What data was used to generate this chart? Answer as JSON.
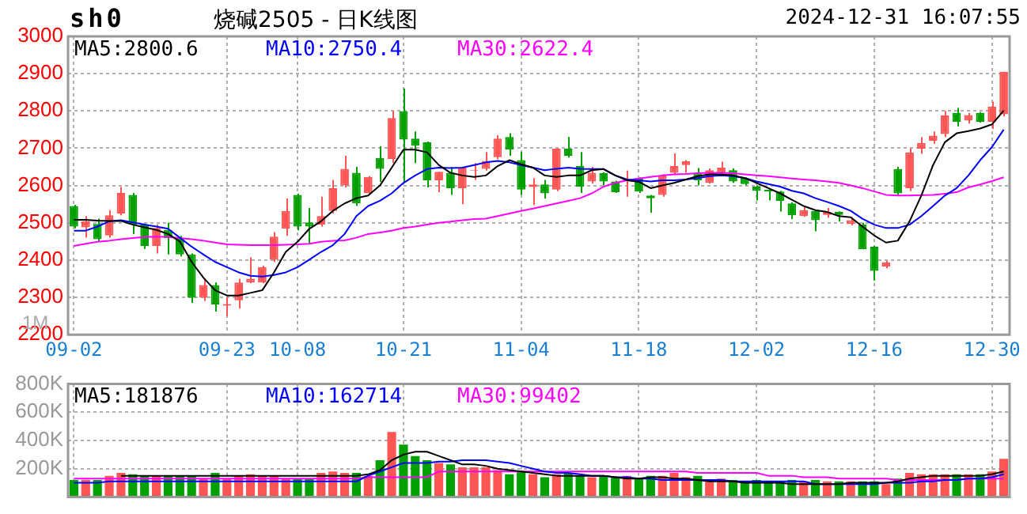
{
  "chart_data": [
    {
      "type": "candlestick",
      "title": "烧碱2505 - 日K线图",
      "subtitle": "2024-12-31 16:07:55",
      "annotations": [
        "sh0",
        "1M"
      ],
      "categories": [
        "09-02",
        null,
        null,
        null,
        null,
        null,
        null,
        null,
        null,
        null,
        null,
        null,
        null,
        "09-23",
        null,
        null,
        null,
        null,
        null,
        "10-08",
        null,
        null,
        null,
        null,
        null,
        null,
        null,
        null,
        "10-21",
        null,
        null,
        null,
        null,
        null,
        null,
        null,
        null,
        null,
        "11-04",
        null,
        null,
        null,
        null,
        null,
        null,
        null,
        null,
        null,
        "11-18",
        null,
        null,
        null,
        null,
        null,
        null,
        null,
        null,
        null,
        "12-02",
        null,
        null,
        null,
        null,
        null,
        null,
        null,
        null,
        null,
        "12-16",
        null,
        null,
        null,
        null,
        null,
        null,
        null,
        null,
        null,
        "12-30",
        null
      ],
      "ohlc": [
        [
          2545,
          2548,
          2485,
          2490
        ],
        [
          2488,
          2518,
          2460,
          2504
        ],
        [
          2497,
          2511,
          2449,
          2456
        ],
        [
          2466,
          2534,
          2460,
          2520
        ],
        [
          2525,
          2596,
          2520,
          2580
        ],
        [
          2575,
          2580,
          2470,
          2495
        ],
        [
          2495,
          2498,
          2430,
          2438
        ],
        [
          2438,
          2496,
          2418,
          2486
        ],
        [
          2481,
          2500,
          2415,
          2459
        ],
        [
          2459,
          2465,
          2410,
          2415
        ],
        [
          2415,
          2418,
          2285,
          2299
        ],
        [
          2299,
          2350,
          2290,
          2333
        ],
        [
          2333,
          2340,
          2262,
          2281
        ],
        [
          2278,
          2300,
          2250,
          2282
        ],
        [
          2292,
          2350,
          2270,
          2340
        ],
        [
          2340,
          2408,
          2338,
          2350
        ],
        [
          2340,
          2385,
          2338,
          2381
        ],
        [
          2401,
          2475,
          2395,
          2463
        ],
        [
          2484,
          2565,
          2465,
          2532
        ],
        [
          2575,
          2578,
          2480,
          2490
        ],
        [
          2501,
          2540,
          2445,
          2490
        ],
        [
          2495,
          2570,
          2490,
          2518
        ],
        [
          2532,
          2615,
          2525,
          2593
        ],
        [
          2600,
          2680,
          2595,
          2645
        ],
        [
          2634,
          2650,
          2545,
          2552
        ],
        [
          2579,
          2625,
          2575,
          2623
        ],
        [
          2674,
          2705,
          2610,
          2645
        ],
        [
          2671,
          2800,
          2660,
          2781
        ],
        [
          2799,
          2860,
          2610,
          2723
        ],
        [
          2726,
          2745,
          2660,
          2707
        ],
        [
          2716,
          2718,
          2595,
          2614
        ],
        [
          2614,
          2637,
          2582,
          2637
        ],
        [
          2634,
          2650,
          2575,
          2593
        ],
        [
          2593,
          2650,
          2550,
          2648
        ],
        [
          2640,
          2660,
          2615,
          2642
        ],
        [
          2645,
          2690,
          2640,
          2666
        ],
        [
          2676,
          2735,
          2670,
          2726
        ],
        [
          2730,
          2740,
          2680,
          2696
        ],
        [
          2668,
          2690,
          2575,
          2589
        ],
        [
          2596,
          2620,
          2547,
          2603
        ],
        [
          2603,
          2615,
          2565,
          2579
        ],
        [
          2589,
          2700,
          2585,
          2699
        ],
        [
          2699,
          2730,
          2675,
          2680
        ],
        [
          2652,
          2690,
          2580,
          2597
        ],
        [
          2611,
          2650,
          2605,
          2634
        ],
        [
          2633,
          2636,
          2600,
          2611
        ],
        [
          2611,
          2613,
          2580,
          2582
        ],
        [
          2612,
          2640,
          2570,
          2616
        ],
        [
          2620,
          2622,
          2580,
          2584
        ],
        [
          2573,
          2575,
          2527,
          2566
        ],
        [
          2575,
          2630,
          2570,
          2627
        ],
        [
          2634,
          2686,
          2628,
          2652
        ],
        [
          2655,
          2668,
          2634,
          2665
        ],
        [
          2634,
          2647,
          2600,
          2614
        ],
        [
          2607,
          2646,
          2605,
          2641
        ],
        [
          2634,
          2664,
          2630,
          2648
        ],
        [
          2641,
          2646,
          2607,
          2611
        ],
        [
          2620,
          2622,
          2600,
          2604
        ],
        [
          2597,
          2600,
          2560,
          2586
        ],
        [
          2589,
          2592,
          2560,
          2584
        ],
        [
          2584,
          2586,
          2530,
          2559
        ],
        [
          2552,
          2555,
          2510,
          2520
        ],
        [
          2518,
          2545,
          2516,
          2534
        ],
        [
          2532,
          2535,
          2477,
          2507
        ],
        [
          2521,
          2540,
          2514,
          2529
        ],
        [
          2529,
          2531,
          2503,
          2521
        ],
        [
          2497,
          2515,
          2493,
          2507
        ],
        [
          2495,
          2500,
          2429,
          2429
        ],
        [
          2436,
          2438,
          2345,
          2371
        ],
        [
          2383,
          2398,
          2378,
          2394
        ],
        [
          2644,
          2650,
          2575,
          2579
        ],
        [
          2593,
          2700,
          2585,
          2689
        ],
        [
          2699,
          2730,
          2685,
          2714
        ],
        [
          2720,
          2745,
          2712,
          2734
        ],
        [
          2738,
          2800,
          2730,
          2788
        ],
        [
          2795,
          2808,
          2759,
          2771
        ],
        [
          2774,
          2795,
          2766,
          2789
        ],
        [
          2795,
          2797,
          2769,
          2771
        ],
        [
          2771,
          2825,
          2752,
          2812
        ],
        [
          2791,
          2905,
          2785,
          2905
        ]
      ],
      "colors": [
        "#00a000",
        "#ff5555",
        "#00a000",
        "#ff5555",
        "#ff5555",
        "#00a000",
        "#00a000",
        "#ff5555",
        "#00a000",
        "#00a000",
        "#00a000",
        "#ff5555",
        "#00a000",
        "#ff5555",
        "#ff5555",
        "#ff5555",
        "#ff5555",
        "#ff5555",
        "#ff5555",
        "#00a000",
        "#00a000",
        "#ff5555",
        "#ff5555",
        "#ff5555",
        "#00a000",
        "#ff5555",
        "#00a000",
        "#ff5555",
        "#00a000",
        "#00a000",
        "#00a000",
        "#ff5555",
        "#00a000",
        "#ff5555",
        "#ff5555",
        "#ff5555",
        "#ff5555",
        "#00a000",
        "#00a000",
        "#ff5555",
        "#00a000",
        "#ff5555",
        "#00a000",
        "#00a000",
        "#ff5555",
        "#00a000",
        "#00a000",
        "#ff5555",
        "#00a000",
        "#00a000",
        "#ff5555",
        "#ff5555",
        "#ff5555",
        "#00a000",
        "#ff5555",
        "#ff5555",
        "#00a000",
        "#00a000",
        "#00a000",
        "#00a000",
        "#00a000",
        "#00a000",
        "#ff5555",
        "#00a000",
        "#ff5555",
        "#00a000",
        "#ff5555",
        "#00a000",
        "#00a000",
        "#ff5555",
        "#00a000",
        "#ff5555",
        "#ff5555",
        "#ff5555",
        "#ff5555",
        "#00a000",
        "#ff5555",
        "#00a000",
        "#ff5555",
        "#ff5555"
      ],
      "series": [
        {
          "name": "MA5:2800.6",
          "color": "#000000",
          "type": "line",
          "values": [
            2508,
            2508,
            2506,
            2505,
            2505,
            2495,
            2488,
            2481,
            2470,
            2450,
            2395,
            2353,
            2319,
            2305,
            2305,
            2312,
            2319,
            2367,
            2422,
            2449,
            2484,
            2504,
            2532,
            2552,
            2566,
            2573,
            2600,
            2648,
            2696,
            2696,
            2689,
            2655,
            2634,
            2627,
            2623,
            2627,
            2652,
            2668,
            2657,
            2648,
            2627,
            2623,
            2627,
            2627,
            2641,
            2644,
            2627,
            2614,
            2610,
            2593,
            2600,
            2607,
            2616,
            2625,
            2630,
            2630,
            2627,
            2620,
            2607,
            2593,
            2579,
            2562,
            2545,
            2534,
            2529,
            2518,
            2515,
            2490,
            2466,
            2447,
            2452,
            2504,
            2573,
            2655,
            2716,
            2740,
            2746,
            2753,
            2764,
            2801
          ]
        },
        {
          "name": "MA10:2750.4",
          "color": "#0000ff",
          "type": "line",
          "values": [
            2479,
            2479,
            2490,
            2504,
            2507,
            2501,
            2495,
            2490,
            2484,
            2460,
            2436,
            2415,
            2395,
            2381,
            2367,
            2358,
            2356,
            2360,
            2367,
            2381,
            2401,
            2422,
            2440,
            2470,
            2518,
            2545,
            2559,
            2579,
            2607,
            2627,
            2644,
            2648,
            2647,
            2648,
            2655,
            2662,
            2666,
            2662,
            2655,
            2648,
            2641,
            2645,
            2648,
            2645,
            2644,
            2644,
            2627,
            2616,
            2614,
            2611,
            2614,
            2614,
            2616,
            2620,
            2625,
            2627,
            2625,
            2620,
            2611,
            2604,
            2597,
            2586,
            2579,
            2566,
            2556,
            2545,
            2532,
            2511,
            2495,
            2486,
            2486,
            2495,
            2518,
            2545,
            2573,
            2593,
            2627,
            2668,
            2703,
            2750
          ]
        },
        {
          "name": "MA30:2622.4",
          "color": "#ff00ff",
          "type": "line",
          "values": [
            2438,
            2444,
            2449,
            2452,
            2456,
            2459,
            2462,
            2463,
            2462,
            2459,
            2456,
            2452,
            2447,
            2442,
            2441,
            2440,
            2440,
            2440,
            2441,
            2442,
            2444,
            2449,
            2452,
            2453,
            2460,
            2470,
            2474,
            2479,
            2486,
            2490,
            2495,
            2500,
            2503,
            2507,
            2510,
            2511,
            2518,
            2525,
            2532,
            2538,
            2545,
            2552,
            2559,
            2566,
            2579,
            2597,
            2607,
            2614,
            2619,
            2623,
            2627,
            2630,
            2631,
            2633,
            2634,
            2634,
            2633,
            2630,
            2627,
            2625,
            2622,
            2619,
            2616,
            2614,
            2611,
            2607,
            2600,
            2593,
            2584,
            2575,
            2573,
            2573,
            2574,
            2575,
            2578,
            2582,
            2595,
            2603,
            2612,
            2622
          ]
        }
      ],
      "ylim": [
        2200,
        3000
      ],
      "yticks": [
        2200,
        2300,
        2400,
        2500,
        2600,
        2700,
        2800,
        2900,
        3000
      ],
      "grid": true,
      "legend": "top"
    },
    {
      "type": "bar",
      "tick_labels": "y",
      "categories": [
        null,
        null,
        null,
        null,
        null,
        null,
        null,
        null,
        null,
        null,
        null,
        null,
        null,
        null,
        null,
        null,
        null,
        null,
        null,
        null,
        null,
        null,
        null,
        null,
        null,
        null,
        null,
        null,
        null,
        null,
        null,
        null,
        null,
        null,
        null,
        null,
        null,
        null,
        null,
        null,
        null,
        null,
        null,
        null,
        null,
        null,
        null,
        null,
        null,
        null,
        null,
        null,
        null,
        null,
        null,
        null,
        null,
        null,
        null,
        null,
        null,
        null,
        null,
        null,
        null,
        null,
        null,
        null,
        null,
        null,
        null,
        null,
        null,
        null,
        null,
        null,
        null,
        null,
        null,
        null
      ],
      "values": [
        120000,
        120000,
        120000,
        150000,
        170000,
        160000,
        150000,
        150000,
        150000,
        150000,
        150000,
        130000,
        170000,
        130000,
        150000,
        160000,
        150000,
        150000,
        130000,
        130000,
        130000,
        170000,
        180000,
        170000,
        170000,
        150000,
        260000,
        460000,
        370000,
        290000,
        260000,
        240000,
        230000,
        210000,
        210000,
        210000,
        190000,
        160000,
        180000,
        160000,
        140000,
        160000,
        170000,
        150000,
        140000,
        150000,
        140000,
        150000,
        130000,
        150000,
        150000,
        170000,
        140000,
        150000,
        120000,
        130000,
        120000,
        110000,
        120000,
        110000,
        110000,
        120000,
        110000,
        120000,
        110000,
        110000,
        110000,
        110000,
        110000,
        90000,
        130000,
        170000,
        160000,
        160000,
        160000,
        160000,
        160000,
        160000,
        180000,
        270000
      ],
      "colors": [
        "#00a000",
        "#ff5555",
        "#00a000",
        "#ff5555",
        "#ff5555",
        "#00a000",
        "#00a000",
        "#ff5555",
        "#00a000",
        "#00a000",
        "#00a000",
        "#ff5555",
        "#00a000",
        "#ff5555",
        "#ff5555",
        "#ff5555",
        "#ff5555",
        "#ff5555",
        "#ff5555",
        "#00a000",
        "#00a000",
        "#ff5555",
        "#ff5555",
        "#ff5555",
        "#00a000",
        "#ff5555",
        "#00a000",
        "#ff5555",
        "#00a000",
        "#00a000",
        "#00a000",
        "#ff5555",
        "#00a000",
        "#ff5555",
        "#ff5555",
        "#ff5555",
        "#ff5555",
        "#00a000",
        "#00a000",
        "#ff5555",
        "#00a000",
        "#ff5555",
        "#00a000",
        "#00a000",
        "#ff5555",
        "#00a000",
        "#00a000",
        "#ff5555",
        "#00a000",
        "#00a000",
        "#ff5555",
        "#ff5555",
        "#ff5555",
        "#00a000",
        "#ff5555",
        "#ff5555",
        "#00a000",
        "#00a000",
        "#00a000",
        "#00a000",
        "#00a000",
        "#00a000",
        "#ff5555",
        "#00a000",
        "#ff5555",
        "#00a000",
        "#ff5555",
        "#00a000",
        "#00a000",
        "#ff5555",
        "#00a000",
        "#ff5555",
        "#ff5555",
        "#ff5555",
        "#ff5555",
        "#00a000",
        "#ff5555",
        "#00a000",
        "#ff5555",
        "#ff5555"
      ],
      "series": [
        {
          "name": "MA5:181876",
          "color": "#000000",
          "type": "line",
          "values": [
            null,
            null,
            null,
            null,
            150000,
            150000,
            150000,
            150000,
            150000,
            150000,
            150000,
            150000,
            150000,
            150000,
            150000,
            150000,
            150000,
            150000,
            150000,
            150000,
            150000,
            150000,
            150000,
            150000,
            150000,
            160000,
            190000,
            260000,
            300000,
            320000,
            320000,
            290000,
            260000,
            230000,
            230000,
            220000,
            200000,
            190000,
            180000,
            170000,
            160000,
            150000,
            150000,
            150000,
            150000,
            150000,
            140000,
            130000,
            130000,
            140000,
            140000,
            130000,
            130000,
            120000,
            110000,
            110000,
            110000,
            100000,
            100000,
            100000,
            100000,
            90000,
            90000,
            90000,
            90000,
            90000,
            100000,
            100000,
            100000,
            100000,
            110000,
            130000,
            140000,
            150000,
            150000,
            150000,
            150000,
            150000,
            160000,
            180000
          ]
        },
        {
          "name": "MA10:162714",
          "color": "#0000ff",
          "type": "line",
          "values": [
            100000,
            100000,
            100000,
            110000,
            110000,
            110000,
            110000,
            110000,
            110000,
            110000,
            110000,
            110000,
            110000,
            110000,
            110000,
            110000,
            110000,
            110000,
            110000,
            110000,
            110000,
            110000,
            110000,
            110000,
            110000,
            150000,
            180000,
            210000,
            240000,
            240000,
            240000,
            250000,
            250000,
            260000,
            260000,
            260000,
            250000,
            240000,
            220000,
            200000,
            180000,
            170000,
            170000,
            160000,
            150000,
            150000,
            140000,
            140000,
            130000,
            130000,
            120000,
            120000,
            120000,
            120000,
            120000,
            120000,
            110000,
            110000,
            110000,
            110000,
            110000,
            110000,
            110000,
            90000,
            90000,
            90000,
            90000,
            90000,
            90000,
            100000,
            100000,
            100000,
            110000,
            110000,
            120000,
            120000,
            130000,
            130000,
            140000,
            160000
          ]
        },
        {
          "name": "MA30:99402",
          "color": "#ff00ff",
          "type": "line",
          "values": [
            130000,
            130000,
            130000,
            130000,
            130000,
            130000,
            130000,
            130000,
            130000,
            130000,
            130000,
            130000,
            130000,
            130000,
            130000,
            130000,
            130000,
            130000,
            130000,
            130000,
            130000,
            130000,
            130000,
            130000,
            130000,
            140000,
            140000,
            140000,
            140000,
            140000,
            140000,
            180000,
            180000,
            180000,
            180000,
            180000,
            180000,
            180000,
            180000,
            180000,
            180000,
            180000,
            180000,
            180000,
            180000,
            180000,
            180000,
            180000,
            180000,
            180000,
            180000,
            180000,
            180000,
            170000,
            170000,
            170000,
            170000,
            170000,
            170000,
            150000,
            150000,
            150000,
            140000,
            140000,
            140000,
            130000,
            130000,
            130000,
            130000,
            130000,
            120000,
            120000,
            120000,
            120000,
            120000,
            120000,
            130000,
            130000,
            130000,
            130000
          ]
        }
      ],
      "ylim": [
        0,
        800000
      ],
      "yticks": [
        {
          "value": 200000,
          "label": "200K"
        },
        {
          "value": 400000,
          "label": "400K"
        },
        {
          "value": 600000,
          "label": "600K"
        },
        {
          "value": 800000,
          "label": "800K"
        }
      ],
      "grid": true,
      "legend": "top"
    }
  ]
}
